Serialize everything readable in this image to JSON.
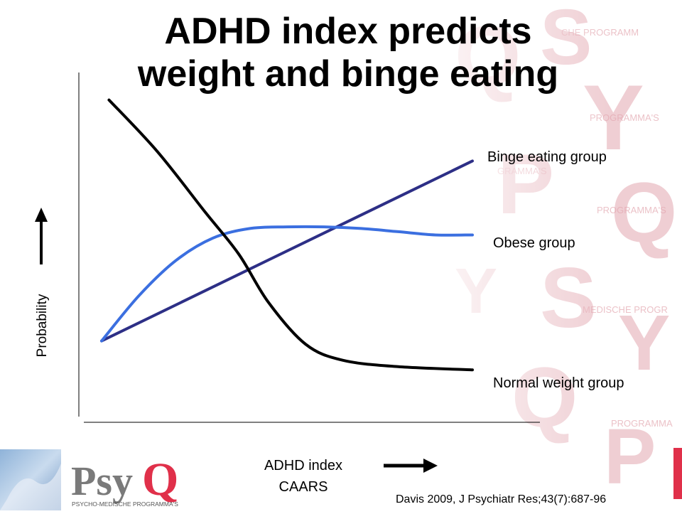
{
  "title_line1": "ADHD index predicts",
  "title_line2": "weight and binge eating",
  "chart_data": {
    "type": "line",
    "title": "ADHD index predicts weight and binge eating",
    "xlabel_line1": "ADHD index",
    "xlabel_line2": "CAARS",
    "ylabel": "Probability",
    "xlim": [
      0,
      100
    ],
    "ylim": [
      0,
      100
    ],
    "grid": false,
    "legend": "inline labels at right end of each line",
    "series": [
      {
        "name": "Binge eating group",
        "color": "#2d2f86",
        "x": [
          0,
          100
        ],
        "y": [
          20,
          76
        ]
      },
      {
        "name": "Obese group",
        "color": "#3b6fe0",
        "x": [
          0,
          10,
          20,
          30,
          40,
          50,
          60,
          70,
          80,
          90,
          100
        ],
        "y": [
          20,
          34,
          45,
          52,
          55,
          55.5,
          55.5,
          55,
          54,
          53,
          53
        ]
      },
      {
        "name": "Normal weight group",
        "color": "#000000",
        "x": [
          2,
          15,
          28,
          37,
          45,
          55,
          65,
          80,
          100
        ],
        "y": [
          95,
          79,
          60,
          47,
          32,
          19,
          14,
          12,
          11
        ]
      }
    ]
  },
  "citation": "Davis 2009, J Psychiatr Res;43(7):687-96",
  "logo": {
    "brand": "PsyQ",
    "tagline": "PSYCHO-MEDISCHE PROGRAMMA'S"
  },
  "colors": {
    "accent_red": "#e0304a",
    "background_tint": "#f2c7cd"
  }
}
